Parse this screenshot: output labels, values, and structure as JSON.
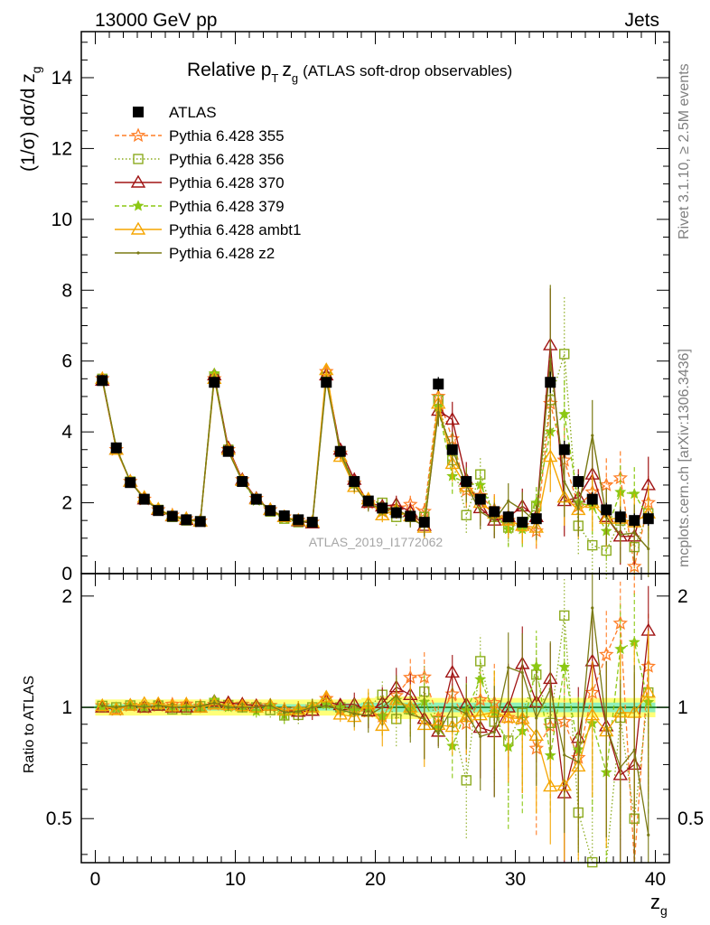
{
  "header": {
    "left": "13000 GeV pp",
    "right": "Jets"
  },
  "side_labels": {
    "rivet": "Rivet 3.1.10, ≥ 2.5M events",
    "mcplots": "mcplots.cern.ch [arXiv:1306.3436]"
  },
  "watermark": "ATLAS_2019_I1772062",
  "colors": {
    "atlas": "#000000",
    "p355": "#ff7f27",
    "p356": "#8cab1e",
    "p370": "#a01414",
    "p379": "#8cc814",
    "pambt1": "#f5a500",
    "pz2": "#7a7a14",
    "band_inner": "#90f0b8",
    "band_outer": "#ffff78",
    "ratio_line": "#1a7a1a"
  },
  "chart_data": [
    {
      "type": "line",
      "title": {
        "main": "Relative p",
        "sub": "T",
        "var": "z",
        "varsub": "g",
        "rest": "(ATLAS soft-drop observables)"
      },
      "ylabel": {
        "pre": "(1/σ) dσ/d z",
        "sub": "g"
      },
      "xlim": [
        -1,
        41
      ],
      "ylim": [
        0,
        15.3
      ],
      "yticks": [
        0,
        2,
        4,
        6,
        8,
        10,
        12,
        14
      ],
      "legend_position": "top-left",
      "x": [
        0.5,
        1.5,
        2.5,
        3.5,
        4.5,
        5.5,
        6.5,
        7.5,
        8.5,
        9.5,
        10.5,
        11.5,
        12.5,
        13.5,
        14.5,
        15.5,
        16.5,
        17.5,
        18.5,
        19.5,
        20.5,
        21.5,
        22.5,
        23.5,
        24.5,
        25.5,
        26.5,
        27.5,
        28.5,
        29.5,
        30.5,
        31.5,
        32.5,
        33.5,
        34.5,
        35.5,
        36.5,
        37.5,
        38.5,
        39.5
      ],
      "series": [
        {
          "name": "ATLAS",
          "key": "atlas",
          "values": [
            5.45,
            3.55,
            2.57,
            2.1,
            1.78,
            1.62,
            1.52,
            1.47,
            5.4,
            3.45,
            2.6,
            2.1,
            1.78,
            1.63,
            1.52,
            1.45,
            5.4,
            3.45,
            2.6,
            2.05,
            1.85,
            1.72,
            1.62,
            1.45,
            5.35,
            3.5,
            2.6,
            2.1,
            1.75,
            1.6,
            1.45,
            1.55,
            5.4,
            3.5,
            2.6,
            2.1,
            1.8,
            1.6,
            1.5,
            1.55
          ],
          "errors": [
            0.12,
            0.08,
            0.06,
            0.05,
            0.05,
            0.05,
            0.04,
            0.04,
            0.12,
            0.08,
            0.06,
            0.05,
            0.05,
            0.04,
            0.04,
            0.04,
            0.12,
            0.1,
            0.08,
            0.08,
            0.08,
            0.08,
            0.08,
            0.08,
            0.2,
            0.15,
            0.15,
            0.15,
            0.15,
            0.15,
            0.15,
            0.15,
            0.3,
            0.25,
            0.2,
            0.2,
            0.2,
            0.2,
            0.2,
            0.2
          ]
        },
        {
          "name": "Pythia 6.428 355",
          "key": "p355",
          "values": [
            5.5,
            3.5,
            2.6,
            2.1,
            1.8,
            1.65,
            1.55,
            1.48,
            5.5,
            3.5,
            2.65,
            2.12,
            1.8,
            1.6,
            1.5,
            1.45,
            5.7,
            3.4,
            2.55,
            2.0,
            1.75,
            1.85,
            1.95,
            1.75,
            5.0,
            3.8,
            2.35,
            2.2,
            1.8,
            1.5,
            1.35,
            1.2,
            4.8,
            3.2,
            1.9,
            2.3,
            2.5,
            2.7,
            0.2,
            2.0
          ],
          "errors": [
            0.05,
            0.05,
            0.05,
            0.05,
            0.05,
            0.05,
            0.05,
            0.05,
            0.1,
            0.08,
            0.08,
            0.08,
            0.08,
            0.08,
            0.08,
            0.08,
            0.15,
            0.15,
            0.2,
            0.2,
            0.2,
            0.25,
            0.25,
            0.3,
            0.4,
            0.5,
            0.5,
            0.5,
            0.5,
            0.5,
            0.5,
            0.5,
            1.2,
            1.0,
            0.8,
            0.8,
            0.8,
            0.8,
            0.8,
            0.8
          ]
        },
        {
          "name": "Pythia 6.428 356",
          "key": "p356",
          "values": [
            5.5,
            3.55,
            2.6,
            2.1,
            1.8,
            1.6,
            1.5,
            1.48,
            5.55,
            3.5,
            2.6,
            2.1,
            1.75,
            1.55,
            1.45,
            1.45,
            5.55,
            3.45,
            2.55,
            2.05,
            2.0,
            1.6,
            1.6,
            1.6,
            4.9,
            3.2,
            1.65,
            2.8,
            1.6,
            1.3,
            1.4,
            1.9,
            4.9,
            6.2,
            1.35,
            0.8,
            0.65,
            1.5,
            0.75,
            1.7
          ],
          "errors": [
            0.05,
            0.05,
            0.05,
            0.05,
            0.05,
            0.05,
            0.05,
            0.05,
            0.1,
            0.08,
            0.08,
            0.08,
            0.08,
            0.08,
            0.08,
            0.08,
            0.15,
            0.15,
            0.2,
            0.2,
            0.2,
            0.25,
            0.25,
            0.3,
            0.4,
            0.5,
            0.5,
            0.5,
            0.5,
            0.5,
            0.5,
            0.5,
            1.2,
            1.6,
            0.8,
            0.8,
            0.8,
            0.8,
            0.8,
            0.8
          ]
        },
        {
          "name": "Pythia 6.428 370",
          "key": "p370",
          "values": [
            5.45,
            3.5,
            2.6,
            2.1,
            1.8,
            1.62,
            1.52,
            1.47,
            5.6,
            3.55,
            2.65,
            2.12,
            1.8,
            1.6,
            1.48,
            1.42,
            5.6,
            3.5,
            2.65,
            2.0,
            1.9,
            1.95,
            1.75,
            1.35,
            4.6,
            4.35,
            2.65,
            1.85,
            1.5,
            1.6,
            1.9,
            1.6,
            6.45,
            2.05,
            2.15,
            2.8,
            1.6,
            1.05,
            1.05,
            2.5
          ],
          "errors": [
            0.05,
            0.05,
            0.05,
            0.05,
            0.05,
            0.05,
            0.05,
            0.05,
            0.1,
            0.08,
            0.08,
            0.08,
            0.08,
            0.08,
            0.08,
            0.08,
            0.15,
            0.15,
            0.2,
            0.2,
            0.2,
            0.25,
            0.25,
            0.3,
            0.4,
            0.5,
            0.5,
            0.5,
            0.5,
            0.5,
            0.5,
            0.5,
            1.6,
            1.0,
            0.8,
            0.8,
            0.8,
            0.8,
            0.8,
            0.8
          ]
        },
        {
          "name": "Pythia 6.428 379",
          "key": "p379",
          "values": [
            5.45,
            3.55,
            2.6,
            2.1,
            1.8,
            1.62,
            1.52,
            1.47,
            5.65,
            3.45,
            2.6,
            2.05,
            1.8,
            1.55,
            1.5,
            1.45,
            5.5,
            3.45,
            2.55,
            2.05,
            1.75,
            1.8,
            1.6,
            1.5,
            4.7,
            2.75,
            2.55,
            2.5,
            1.7,
            1.25,
            1.25,
            2.0,
            4.0,
            4.5,
            2.0,
            1.9,
            1.2,
            2.3,
            2.25,
            1.6
          ],
          "errors": [
            0.05,
            0.05,
            0.05,
            0.05,
            0.05,
            0.05,
            0.05,
            0.05,
            0.1,
            0.08,
            0.08,
            0.08,
            0.08,
            0.08,
            0.08,
            0.08,
            0.15,
            0.15,
            0.2,
            0.2,
            0.2,
            0.25,
            0.25,
            0.3,
            0.4,
            0.5,
            0.5,
            0.5,
            0.5,
            0.5,
            0.5,
            0.5,
            1.2,
            1.0,
            0.8,
            0.8,
            0.8,
            0.8,
            0.8,
            0.8
          ]
        },
        {
          "name": "Pythia 6.428 ambt1",
          "key": "pambt1",
          "values": [
            5.5,
            3.5,
            2.6,
            2.15,
            1.82,
            1.63,
            1.55,
            1.47,
            5.5,
            3.5,
            2.62,
            2.1,
            1.8,
            1.6,
            1.5,
            1.45,
            5.75,
            3.3,
            2.45,
            2.1,
            1.65,
            1.8,
            1.62,
            1.3,
            4.8,
            3.1,
            2.45,
            2.0,
            1.7,
            1.5,
            1.35,
            1.3,
            3.3,
            2.15,
            1.8,
            2.0,
            1.55,
            1.55,
            1.45,
            1.7
          ],
          "errors": [
            0.05,
            0.05,
            0.05,
            0.05,
            0.05,
            0.05,
            0.05,
            0.05,
            0.1,
            0.08,
            0.08,
            0.08,
            0.08,
            0.08,
            0.08,
            0.08,
            0.15,
            0.15,
            0.2,
            0.2,
            0.2,
            0.25,
            0.25,
            0.3,
            0.4,
            0.5,
            0.5,
            0.5,
            0.5,
            0.5,
            0.5,
            0.5,
            1.0,
            0.8,
            0.8,
            0.8,
            0.8,
            0.8,
            0.8,
            0.8
          ]
        },
        {
          "name": "Pythia 6.428 z2",
          "key": "pz2",
          "values": [
            5.5,
            3.55,
            2.6,
            2.1,
            1.8,
            1.62,
            1.52,
            1.48,
            5.55,
            3.45,
            2.6,
            2.1,
            1.8,
            1.58,
            1.48,
            1.45,
            5.45,
            3.4,
            2.5,
            1.95,
            1.85,
            1.85,
            1.55,
            1.35,
            4.55,
            3.5,
            2.5,
            1.75,
            1.5,
            2.05,
            1.8,
            1.45,
            6.05,
            2.6,
            1.85,
            3.9,
            1.6,
            1.1,
            1.15,
            0.7
          ],
          "errors": [
            0.05,
            0.05,
            0.05,
            0.05,
            0.05,
            0.05,
            0.05,
            0.05,
            0.1,
            0.08,
            0.08,
            0.08,
            0.08,
            0.08,
            0.08,
            0.08,
            0.15,
            0.15,
            0.2,
            0.2,
            0.2,
            0.25,
            0.25,
            0.3,
            0.4,
            0.5,
            0.5,
            0.5,
            0.5,
            0.5,
            0.5,
            0.5,
            2.1,
            1.0,
            0.8,
            1.0,
            0.8,
            0.8,
            0.8,
            0.8
          ]
        }
      ]
    },
    {
      "type": "line",
      "xlabel": {
        "main": "z",
        "sub": "g"
      },
      "ylabel": "Ratio to ATLAS",
      "xlim": [
        -1,
        41
      ],
      "ylim": [
        0.38,
        2.3
      ],
      "yscale": "log",
      "yticks_labeled": [
        0.5,
        1,
        2
      ],
      "xticks": [
        0,
        10,
        20,
        30,
        40
      ],
      "band": {
        "inner": [
          0.02,
          0.02,
          0.02,
          0.02,
          0.02,
          0.02,
          0.02,
          0.02,
          0.02,
          0.02,
          0.02,
          0.02,
          0.02,
          0.02,
          0.02,
          0.02,
          0.02,
          0.025,
          0.025,
          0.03,
          0.03,
          0.03,
          0.03,
          0.03,
          0.03,
          0.03,
          0.03,
          0.03,
          0.03,
          0.03,
          0.03,
          0.03,
          0.03,
          0.03,
          0.03,
          0.03,
          0.03,
          0.03,
          0.03,
          0.03
        ],
        "outer": [
          0.05,
          0.05,
          0.05,
          0.05,
          0.05,
          0.05,
          0.05,
          0.05,
          0.05,
          0.05,
          0.05,
          0.05,
          0.05,
          0.05,
          0.05,
          0.05,
          0.05,
          0.05,
          0.05,
          0.06,
          0.07,
          0.07,
          0.07,
          0.07,
          0.06,
          0.06,
          0.06,
          0.06,
          0.06,
          0.06,
          0.06,
          0.06,
          0.06,
          0.06,
          0.06,
          0.06,
          0.06,
          0.06,
          0.06,
          0.06
        ]
      }
    }
  ]
}
